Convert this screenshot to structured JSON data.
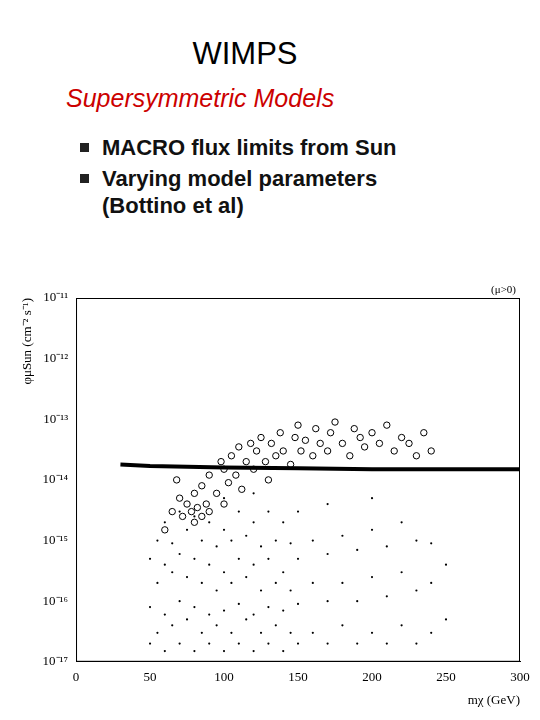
{
  "slide": {
    "title": "WIMPS",
    "subtitle": "Supersymmetric Models",
    "bullets": [
      "MACRO flux limits from Sun",
      "Varying model parameters (Bottino et al)"
    ]
  },
  "chart_data": {
    "type": "scatter",
    "log": "y",
    "grid": false,
    "x_label": "mχ (GeV)",
    "y_label": "φμSun (cm⁻² s⁻¹)",
    "annotation": "(μ>0)",
    "xlim": [
      0,
      300
    ],
    "xticks": [
      0,
      50,
      100,
      150,
      200,
      250,
      300
    ],
    "ylim": [
      1e-17,
      1e-11
    ],
    "yticks": [
      {
        "value": 1e-17,
        "label": "10⁻¹⁷"
      },
      {
        "value": 1e-16,
        "label": "10⁻¹⁶"
      },
      {
        "value": 1e-15,
        "label": "10⁻¹⁵"
      },
      {
        "value": 1e-14,
        "label": "10⁻¹⁴"
      },
      {
        "value": 1e-13,
        "label": "10⁻¹³"
      },
      {
        "value": 1e-12,
        "label": "10⁻¹²"
      },
      {
        "value": 1e-11,
        "label": "10⁻¹¹"
      }
    ],
    "series": [
      {
        "marker": "open_circle",
        "color": "#000000",
        "x": [
          65,
          70,
          72,
          75,
          78,
          80,
          80,
          82,
          85,
          85,
          88,
          90,
          90,
          95,
          98,
          100,
          100,
          103,
          105,
          108,
          110,
          112,
          115,
          118,
          120,
          122,
          125,
          128,
          130,
          132,
          135,
          138,
          140,
          145,
          148,
          150,
          152,
          155,
          160,
          162,
          165,
          170,
          172,
          175,
          180,
          185,
          188,
          192,
          195,
          200,
          205,
          210,
          215,
          220,
          225,
          230,
          235,
          240,
          60,
          68
        ],
        "values": [
          3e-15,
          5e-15,
          2.5e-15,
          4e-15,
          3e-15,
          2e-15,
          6e-15,
          3.5e-15,
          2.5e-15,
          8e-15,
          4e-15,
          1.2e-14,
          3e-15,
          6e-15,
          2e-14,
          1.5e-14,
          4e-15,
          9e-15,
          2.5e-14,
          1.2e-14,
          3.5e-14,
          7e-15,
          2e-14,
          4e-14,
          1.5e-14,
          3e-14,
          5e-14,
          2e-14,
          1e-14,
          4e-14,
          2.5e-14,
          6e-14,
          3e-14,
          1.8e-14,
          5e-14,
          8e-14,
          3e-14,
          4.5e-14,
          2.5e-14,
          7e-14,
          4e-14,
          3e-14,
          6e-14,
          9e-14,
          4e-14,
          2.5e-14,
          7e-14,
          5e-14,
          3.5e-14,
          6e-14,
          4e-14,
          8e-14,
          3e-14,
          5e-14,
          4e-14,
          2.5e-14,
          6e-14,
          3e-14,
          1.5e-15,
          1e-14
        ]
      },
      {
        "marker": "dot",
        "color": "#000000",
        "x": [
          50,
          50,
          50,
          55,
          55,
          55,
          60,
          60,
          60,
          60,
          65,
          65,
          65,
          70,
          70,
          70,
          70,
          75,
          75,
          75,
          80,
          80,
          80,
          80,
          85,
          85,
          85,
          90,
          90,
          90,
          90,
          95,
          95,
          95,
          100,
          100,
          100,
          100,
          100,
          105,
          105,
          105,
          110,
          110,
          110,
          110,
          115,
          115,
          115,
          120,
          120,
          120,
          120,
          120,
          125,
          125,
          125,
          130,
          130,
          130,
          130,
          135,
          135,
          135,
          140,
          140,
          140,
          140,
          145,
          145,
          145,
          150,
          150,
          150,
          150,
          160,
          160,
          160,
          170,
          170,
          170,
          170,
          180,
          180,
          180,
          190,
          190,
          190,
          200,
          200,
          200,
          200,
          210,
          210,
          210,
          220,
          220,
          220,
          230,
          230,
          230,
          240,
          240,
          240,
          250,
          250
        ],
        "values": [
          2e-17,
          8e-17,
          5e-16,
          3e-17,
          2e-16,
          1e-15,
          1.5e-17,
          6e-17,
          4e-16,
          2e-15,
          4e-17,
          3e-16,
          9e-16,
          2e-17,
          1e-16,
          6e-16,
          3e-15,
          5e-17,
          2.5e-16,
          1.5e-15,
          1.5e-17,
          8e-17,
          5e-16,
          2.5e-15,
          3e-17,
          2e-16,
          1e-15,
          2e-17,
          6e-17,
          4e-16,
          2e-15,
          4e-17,
          1.5e-16,
          8e-16,
          1.5e-17,
          7e-17,
          3e-16,
          1.5e-15,
          5e-15,
          3e-17,
          2e-16,
          1e-15,
          2e-17,
          9e-17,
          5e-16,
          3e-15,
          5e-17,
          2.5e-16,
          1.2e-15,
          1.5e-17,
          6e-17,
          4e-16,
          2e-15,
          6e-15,
          3e-17,
          1.5e-16,
          8e-16,
          2e-17,
          8e-17,
          5e-16,
          3e-15,
          4e-17,
          2e-16,
          1e-15,
          1.5e-17,
          7e-17,
          3e-16,
          2e-15,
          3e-17,
          1.5e-16,
          9e-16,
          2e-17,
          9e-17,
          5e-16,
          3e-15,
          3e-17,
          2e-16,
          1e-15,
          2e-17,
          1e-16,
          6e-16,
          4e-15,
          4e-17,
          2e-16,
          1.2e-15,
          2e-17,
          1e-16,
          7e-16,
          3e-17,
          2.5e-16,
          1.5e-15,
          5e-15,
          2e-17,
          1.2e-16,
          8e-16,
          4e-17,
          3e-16,
          2e-15,
          2e-17,
          1.5e-16,
          1e-15,
          3e-17,
          2e-16,
          9e-16,
          5e-17,
          4e-16
        ]
      },
      {
        "type": "line",
        "line_style": "solid",
        "color": "#000000",
        "x": [
          30,
          50,
          100,
          150,
          200,
          250,
          300
        ],
        "values": [
          1.8e-14,
          1.7e-14,
          1.6e-14,
          1.55e-14,
          1.5e-14,
          1.5e-14,
          1.5e-14
        ]
      }
    ]
  }
}
